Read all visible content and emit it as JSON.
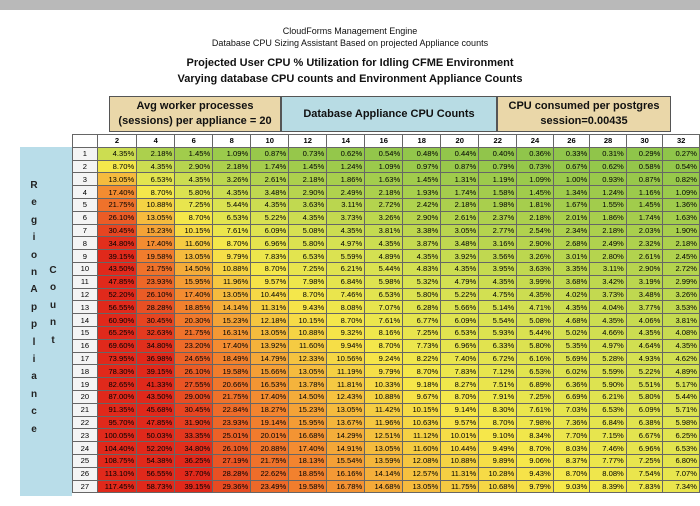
{
  "header": {
    "line1": "CloudForms Management Engine",
    "line2": "Database CPU Sizing Assistant Based on projected Appliance counts",
    "title": "Projected User CPU % Utilization for Idling CFME Environment",
    "subtitle": "Varying database CPU counts and Environment  Appliance Counts"
  },
  "groups": {
    "workers": "Avg worker processes (sessions) per appliance = 20",
    "db_cpu": "Database Appliance CPU Counts",
    "consumed": "CPU consumed per postgres session=0.00435"
  },
  "side_labels": {
    "outer": "Region Appliance",
    "inner": "Count"
  },
  "columns": [
    "2",
    "4",
    "6",
    "8",
    "10",
    "12",
    "14",
    "16",
    "18",
    "20",
    "22",
    "24",
    "26",
    "28",
    "30",
    "32"
  ],
  "colors": {
    "red": "#e0291b",
    "orange": "#f3852f",
    "yellow": "#f6e84a",
    "yellow_green": "#d6e152",
    "green": "#8bc34a"
  },
  "rows": [
    {
      "n": "1",
      "v": [
        "4.35%",
        "2.18%",
        "1.45%",
        "1.09%",
        "0.87%",
        "0.73%",
        "0.62%",
        "0.54%",
        "0.48%",
        "0.44%",
        "0.40%",
        "0.36%",
        "0.33%",
        "0.31%",
        "0.29%",
        "0.27%"
      ]
    },
    {
      "n": "2",
      "v": [
        "8.70%",
        "4.35%",
        "2.90%",
        "2.18%",
        "1.74%",
        "1.45%",
        "1.24%",
        "1.09%",
        "0.97%",
        "0.87%",
        "0.79%",
        "0.73%",
        "0.67%",
        "0.62%",
        "0.58%",
        "0.54%"
      ]
    },
    {
      "n": "3",
      "v": [
        "13.05%",
        "6.53%",
        "4.35%",
        "3.26%",
        "2.61%",
        "2.18%",
        "1.86%",
        "1.63%",
        "1.45%",
        "1.31%",
        "1.19%",
        "1.09%",
        "1.00%",
        "0.93%",
        "0.87%",
        "0.82%"
      ]
    },
    {
      "n": "4",
      "v": [
        "17.40%",
        "8.70%",
        "5.80%",
        "4.35%",
        "3.48%",
        "2.90%",
        "2.49%",
        "2.18%",
        "1.93%",
        "1.74%",
        "1.58%",
        "1.45%",
        "1.34%",
        "1.24%",
        "1.16%",
        "1.09%"
      ]
    },
    {
      "n": "5",
      "v": [
        "21.75%",
        "10.88%",
        "7.25%",
        "5.44%",
        "4.35%",
        "3.63%",
        "3.11%",
        "2.72%",
        "2.42%",
        "2.18%",
        "1.98%",
        "1.81%",
        "1.67%",
        "1.55%",
        "1.45%",
        "1.36%"
      ]
    },
    {
      "n": "6",
      "v": [
        "26.10%",
        "13.05%",
        "8.70%",
        "6.53%",
        "5.22%",
        "4.35%",
        "3.73%",
        "3.26%",
        "2.90%",
        "2.61%",
        "2.37%",
        "2.18%",
        "2.01%",
        "1.86%",
        "1.74%",
        "1.63%"
      ]
    },
    {
      "n": "7",
      "v": [
        "30.45%",
        "15.23%",
        "10.15%",
        "7.61%",
        "6.09%",
        "5.08%",
        "4.35%",
        "3.81%",
        "3.38%",
        "3.05%",
        "2.77%",
        "2.54%",
        "2.34%",
        "2.18%",
        "2.03%",
        "1.90%"
      ]
    },
    {
      "n": "8",
      "v": [
        "34.80%",
        "17.40%",
        "11.60%",
        "8.70%",
        "6.96%",
        "5.80%",
        "4.97%",
        "4.35%",
        "3.87%",
        "3.48%",
        "3.16%",
        "2.90%",
        "2.68%",
        "2.49%",
        "2.32%",
        "2.18%"
      ]
    },
    {
      "n": "9",
      "v": [
        "39.15%",
        "19.58%",
        "13.05%",
        "9.79%",
        "7.83%",
        "6.53%",
        "5.59%",
        "4.89%",
        "4.35%",
        "3.92%",
        "3.56%",
        "3.26%",
        "3.01%",
        "2.80%",
        "2.61%",
        "2.45%"
      ]
    },
    {
      "n": "10",
      "v": [
        "43.50%",
        "21.75%",
        "14.50%",
        "10.88%",
        "8.70%",
        "7.25%",
        "6.21%",
        "5.44%",
        "4.83%",
        "4.35%",
        "3.95%",
        "3.63%",
        "3.35%",
        "3.11%",
        "2.90%",
        "2.72%"
      ]
    },
    {
      "n": "11",
      "v": [
        "47.85%",
        "23.93%",
        "15.95%",
        "11.96%",
        "9.57%",
        "7.98%",
        "6.84%",
        "5.98%",
        "5.32%",
        "4.79%",
        "4.35%",
        "3.99%",
        "3.68%",
        "3.42%",
        "3.19%",
        "2.99%"
      ]
    },
    {
      "n": "12",
      "v": [
        "52.20%",
        "26.10%",
        "17.40%",
        "13.05%",
        "10.44%",
        "8.70%",
        "7.46%",
        "6.53%",
        "5.80%",
        "5.22%",
        "4.75%",
        "4.35%",
        "4.02%",
        "3.73%",
        "3.48%",
        "3.26%"
      ]
    },
    {
      "n": "13",
      "v": [
        "56.55%",
        "28.28%",
        "18.85%",
        "14.14%",
        "11.31%",
        "9.43%",
        "8.08%",
        "7.07%",
        "6.28%",
        "5.66%",
        "5.14%",
        "4.71%",
        "4.35%",
        "4.04%",
        "3.77%",
        "3.53%"
      ]
    },
    {
      "n": "14",
      "v": [
        "60.90%",
        "30.45%",
        "20.30%",
        "15.23%",
        "12.18%",
        "10.15%",
        "8.70%",
        "7.61%",
        "6.77%",
        "6.09%",
        "5.54%",
        "5.08%",
        "4.68%",
        "4.35%",
        "4.06%",
        "3.81%"
      ]
    },
    {
      "n": "15",
      "v": [
        "65.25%",
        "32.63%",
        "21.75%",
        "16.31%",
        "13.05%",
        "10.88%",
        "9.32%",
        "8.16%",
        "7.25%",
        "6.53%",
        "5.93%",
        "5.44%",
        "5.02%",
        "4.66%",
        "4.35%",
        "4.08%"
      ]
    },
    {
      "n": "16",
      "v": [
        "69.60%",
        "34.80%",
        "23.20%",
        "17.40%",
        "13.92%",
        "11.60%",
        "9.94%",
        "8.70%",
        "7.73%",
        "6.96%",
        "6.33%",
        "5.80%",
        "5.35%",
        "4.97%",
        "4.64%",
        "4.35%"
      ]
    },
    {
      "n": "17",
      "v": [
        "73.95%",
        "36.98%",
        "24.65%",
        "18.49%",
        "14.79%",
        "12.33%",
        "10.56%",
        "9.24%",
        "8.22%",
        "7.40%",
        "6.72%",
        "6.16%",
        "5.69%",
        "5.28%",
        "4.93%",
        "4.62%"
      ]
    },
    {
      "n": "18",
      "v": [
        "78.30%",
        "39.15%",
        "26.10%",
        "19.58%",
        "15.66%",
        "13.05%",
        "11.19%",
        "9.79%",
        "8.70%",
        "7.83%",
        "7.12%",
        "6.53%",
        "6.02%",
        "5.59%",
        "5.22%",
        "4.89%"
      ]
    },
    {
      "n": "19",
      "v": [
        "82.65%",
        "41.33%",
        "27.55%",
        "20.66%",
        "16.53%",
        "13.78%",
        "11.81%",
        "10.33%",
        "9.18%",
        "8.27%",
        "7.51%",
        "6.89%",
        "6.36%",
        "5.90%",
        "5.51%",
        "5.17%"
      ]
    },
    {
      "n": "20",
      "v": [
        "87.00%",
        "43.50%",
        "29.00%",
        "21.75%",
        "17.40%",
        "14.50%",
        "12.43%",
        "10.88%",
        "9.67%",
        "8.70%",
        "7.91%",
        "7.25%",
        "6.69%",
        "6.21%",
        "5.80%",
        "5.44%"
      ]
    },
    {
      "n": "21",
      "v": [
        "91.35%",
        "45.68%",
        "30.45%",
        "22.84%",
        "18.27%",
        "15.23%",
        "13.05%",
        "11.42%",
        "10.15%",
        "9.14%",
        "8.30%",
        "7.61%",
        "7.03%",
        "6.53%",
        "6.09%",
        "5.71%"
      ]
    },
    {
      "n": "22",
      "v": [
        "95.70%",
        "47.85%",
        "31.90%",
        "23.93%",
        "19.14%",
        "15.95%",
        "13.67%",
        "11.96%",
        "10.63%",
        "9.57%",
        "8.70%",
        "7.98%",
        "7.36%",
        "6.84%",
        "6.38%",
        "5.98%"
      ]
    },
    {
      "n": "23",
      "v": [
        "100.05%",
        "50.03%",
        "33.35%",
        "25.01%",
        "20.01%",
        "16.68%",
        "14.29%",
        "12.51%",
        "11.12%",
        "10.01%",
        "9.10%",
        "8.34%",
        "7.70%",
        "7.15%",
        "6.67%",
        "6.25%"
      ]
    },
    {
      "n": "24",
      "v": [
        "104.40%",
        "52.20%",
        "34.80%",
        "26.10%",
        "20.88%",
        "17.40%",
        "14.91%",
        "13.05%",
        "11.60%",
        "10.44%",
        "9.49%",
        "8.70%",
        "8.03%",
        "7.46%",
        "6.96%",
        "6.53%"
      ]
    },
    {
      "n": "25",
      "v": [
        "108.75%",
        "54.38%",
        "36.25%",
        "27.19%",
        "21.75%",
        "18.13%",
        "15.54%",
        "13.59%",
        "12.08%",
        "10.88%",
        "9.89%",
        "9.06%",
        "8.37%",
        "7.77%",
        "7.25%",
        "6.80%"
      ]
    },
    {
      "n": "26",
      "v": [
        "113.10%",
        "56.55%",
        "37.70%",
        "28.28%",
        "22.62%",
        "18.85%",
        "16.16%",
        "14.14%",
        "12.57%",
        "11.31%",
        "10.28%",
        "9.43%",
        "8.70%",
        "8.08%",
        "7.54%",
        "7.07%"
      ]
    },
    {
      "n": "27",
      "v": [
        "117.45%",
        "58.73%",
        "39.15%",
        "29.36%",
        "23.49%",
        "19.58%",
        "16.78%",
        "14.68%",
        "13.05%",
        "11.75%",
        "10.68%",
        "9.79%",
        "9.03%",
        "8.39%",
        "7.83%",
        "7.34%"
      ]
    }
  ]
}
